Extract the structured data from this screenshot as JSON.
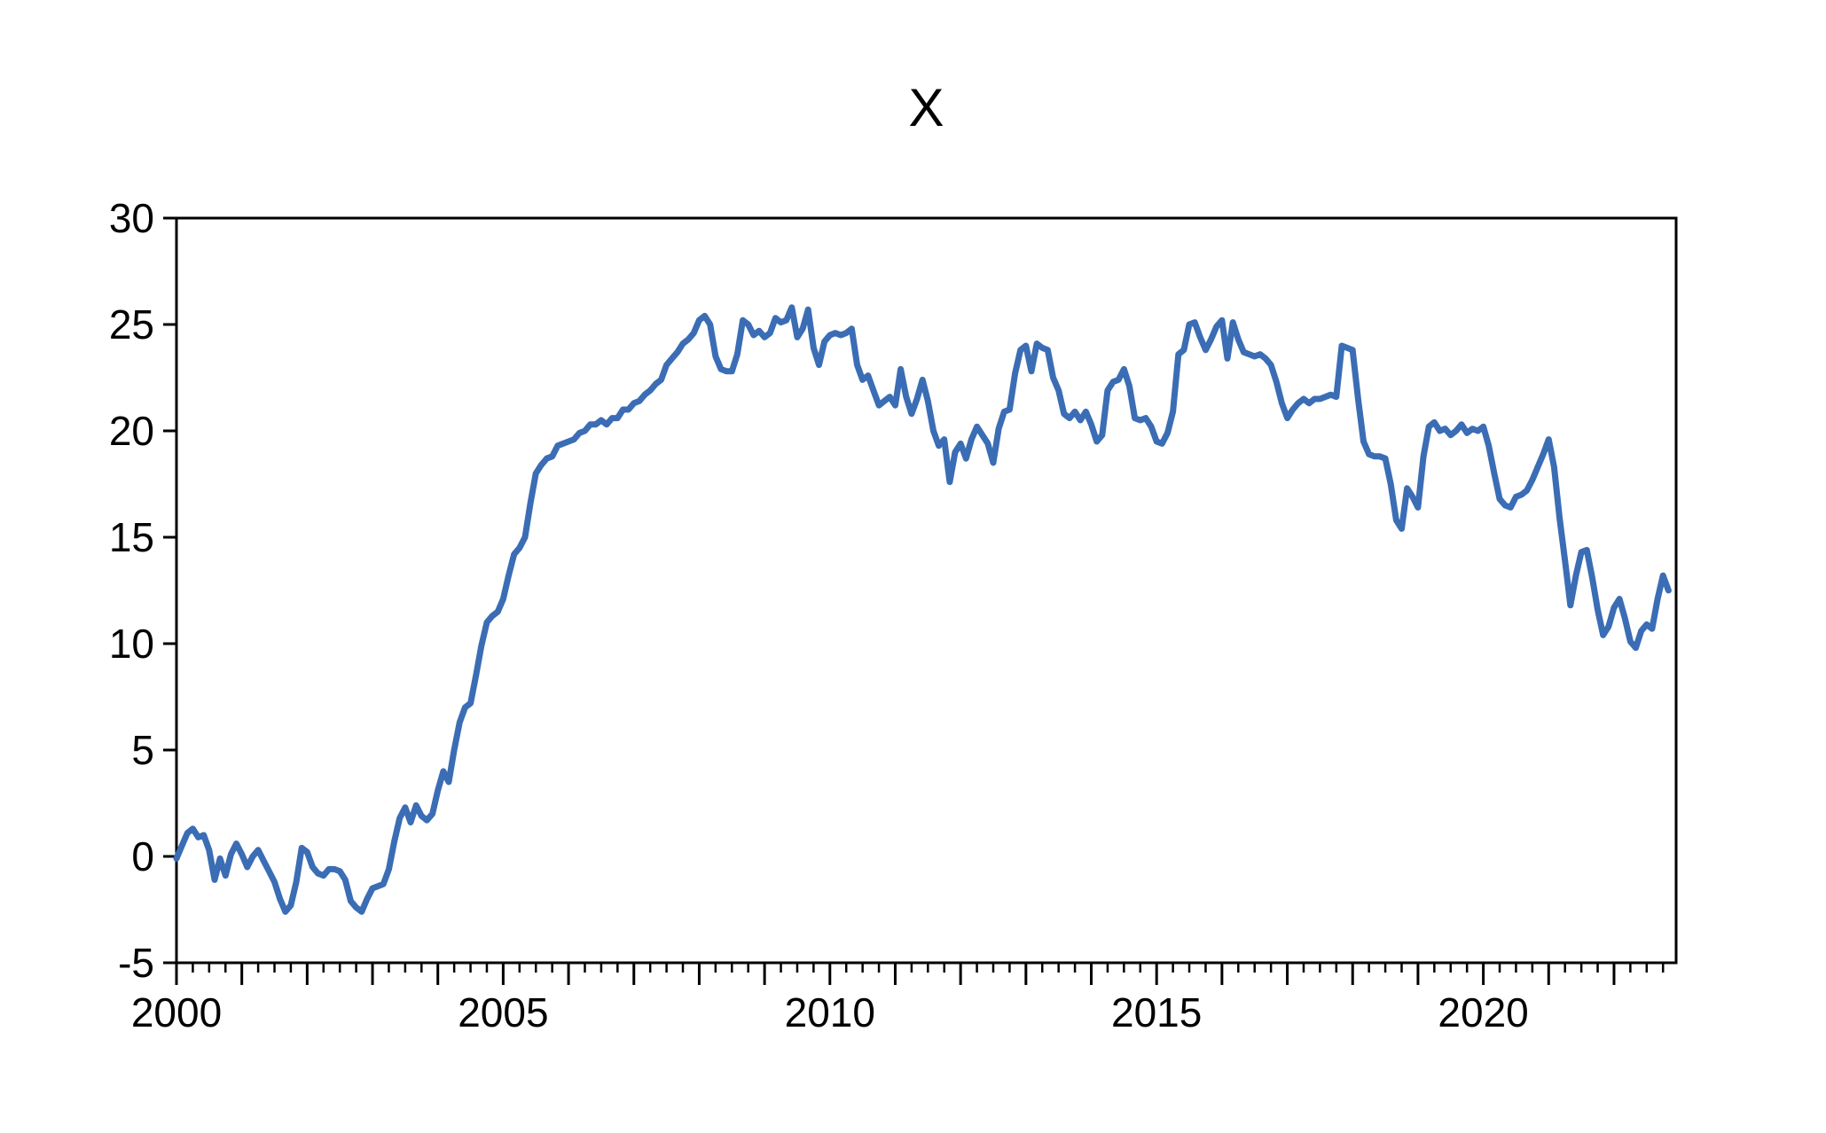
{
  "chart_data": {
    "type": "line",
    "title": "X",
    "xlabel": "",
    "ylabel": "",
    "ylim": [
      -5,
      30
    ],
    "yticks": [
      30,
      25,
      20,
      15,
      10,
      5,
      0,
      -5
    ],
    "ytick_labels": [
      "30",
      "25",
      "20",
      "15",
      "10",
      "5",
      "0",
      "-5"
    ],
    "xtick_label_years": [
      2000,
      2005,
      2010,
      2015,
      2020
    ],
    "xtick_labels": [
      "2000",
      "2005",
      "2010",
      "2015",
      "2020"
    ],
    "x_start": "2000-01",
    "x_end": "2022-11",
    "x_frequency": "monthly",
    "x_minor_tick_every_months": 3,
    "x_major_tick_every_months": 12,
    "grid": "off",
    "legend": "none",
    "line_color": "#3B6DB5",
    "axis_color": "#000000",
    "background_color": "#ffffff",
    "series": [
      {
        "name": "X",
        "values": [
          -0.1,
          0.5,
          1.1,
          1.3,
          0.9,
          1.0,
          0.3,
          -1.1,
          -0.1,
          -0.9,
          0.1,
          0.6,
          0.1,
          -0.5,
          0.0,
          0.3,
          -0.2,
          -0.7,
          -1.2,
          -2.0,
          -2.6,
          -2.3,
          -1.2,
          0.4,
          0.2,
          -0.5,
          -0.8,
          -0.9,
          -0.6,
          -0.6,
          -0.7,
          -1.1,
          -2.1,
          -2.4,
          -2.6,
          -2.0,
          -1.5,
          -1.4,
          -1.3,
          -0.6,
          0.7,
          1.8,
          2.3,
          1.6,
          2.4,
          1.9,
          1.7,
          2.0,
          3.1,
          4.0,
          3.5,
          5.0,
          6.3,
          7.0,
          7.2,
          8.5,
          9.9,
          11.0,
          11.3,
          11.5,
          12.1,
          13.2,
          14.2,
          14.5,
          15.0,
          16.6,
          18.0,
          18.4,
          18.7,
          18.8,
          19.3,
          19.4,
          19.5,
          19.6,
          19.9,
          20.0,
          20.3,
          20.3,
          20.5,
          20.3,
          20.6,
          20.6,
          21.0,
          21.0,
          21.3,
          21.4,
          21.7,
          21.9,
          22.2,
          22.4,
          23.1,
          23.4,
          23.7,
          24.1,
          24.3,
          24.6,
          25.2,
          25.4,
          25.0,
          23.5,
          22.9,
          22.8,
          22.8,
          23.6,
          25.2,
          25.0,
          24.5,
          24.7,
          24.4,
          24.6,
          25.3,
          25.1,
          25.2,
          25.8,
          24.4,
          24.8,
          25.7,
          23.9,
          23.1,
          24.2,
          24.5,
          24.6,
          24.5,
          24.6,
          24.8,
          23.1,
          22.4,
          22.6,
          21.9,
          21.2,
          21.4,
          21.6,
          21.2,
          22.9,
          21.6,
          20.8,
          21.5,
          22.4,
          21.4,
          20.0,
          19.3,
          19.6,
          17.6,
          19.0,
          19.4,
          18.7,
          19.6,
          20.2,
          19.8,
          19.4,
          18.5,
          20.1,
          20.9,
          21.0,
          22.7,
          23.8,
          24.0,
          22.8,
          24.1,
          23.9,
          23.8,
          22.5,
          21.9,
          20.8,
          20.6,
          20.9,
          20.5,
          20.9,
          20.3,
          19.5,
          19.8,
          21.9,
          22.3,
          22.4,
          22.9,
          22.1,
          20.6,
          20.5,
          20.6,
          20.2,
          19.5,
          19.4,
          19.9,
          20.9,
          23.6,
          23.8,
          25.0,
          25.1,
          24.4,
          23.8,
          24.3,
          24.9,
          25.2,
          23.4,
          25.1,
          24.3,
          23.7,
          23.6,
          23.5,
          23.6,
          23.4,
          23.1,
          22.3,
          21.3,
          20.6,
          21.0,
          21.3,
          21.5,
          21.3,
          21.5,
          21.5,
          21.6,
          21.7,
          21.6,
          24.0,
          23.9,
          23.8,
          21.5,
          19.5,
          18.9,
          18.8,
          18.8,
          18.7,
          17.5,
          15.8,
          15.4,
          17.3,
          16.9,
          16.4,
          18.8,
          20.2,
          20.4,
          20.0,
          20.1,
          19.8,
          20.0,
          20.3,
          19.9,
          20.1,
          20.0,
          20.2,
          19.3,
          18.0,
          16.8,
          16.5,
          16.4,
          16.9,
          17.0,
          17.2,
          17.7,
          18.3,
          18.9,
          19.6,
          18.3,
          15.9,
          13.9,
          11.8,
          13.2,
          14.3,
          14.4,
          13.1,
          11.6,
          10.4,
          10.8,
          11.7,
          12.1,
          11.2,
          10.1,
          9.8,
          10.6,
          10.9,
          10.7,
          12.1,
          13.2,
          12.5
        ]
      }
    ]
  }
}
